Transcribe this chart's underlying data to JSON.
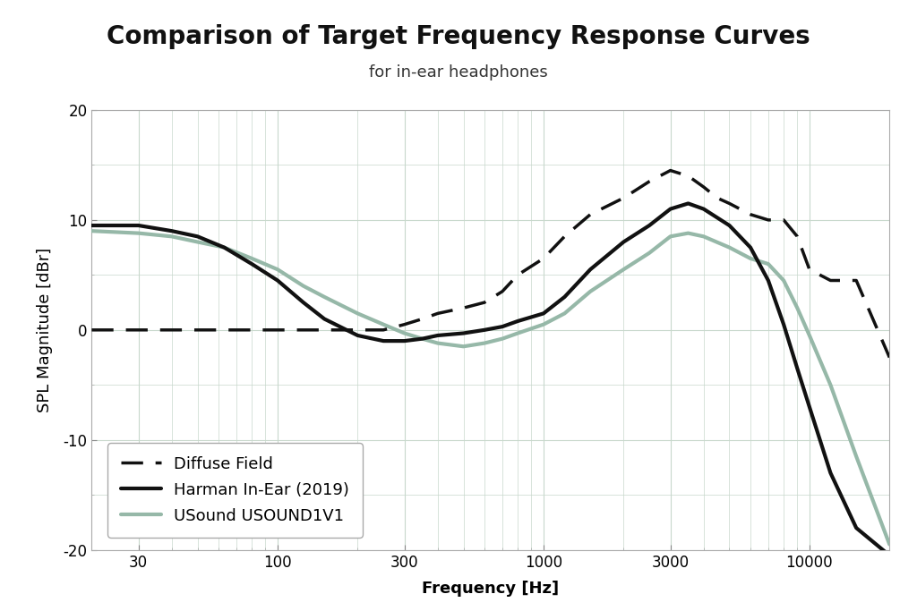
{
  "title": "Comparison of Target Frequency Response Curves",
  "subtitle": "for in-ear headphones",
  "xlabel": "Frequency [Hz]",
  "ylabel": "SPL Magnitude [dBr]",
  "xlim": [
    20,
    20000
  ],
  "ylim": [
    -20,
    20
  ],
  "background_color": "#ffffff",
  "grid_color": "#c8d8cc",
  "diffuse_field": {
    "color": "#111111",
    "linewidth": 2.5,
    "freqs": [
      20,
      30,
      50,
      80,
      100,
      150,
      200,
      250,
      300,
      350,
      400,
      500,
      600,
      700,
      800,
      1000,
      1200,
      1500,
      2000,
      2500,
      3000,
      3500,
      4000,
      4500,
      5000,
      6000,
      7000,
      8000,
      9000,
      10000,
      12000,
      15000,
      20000
    ],
    "values": [
      0.0,
      0.0,
      0.0,
      0.0,
      0.0,
      0.0,
      0.0,
      0.0,
      0.5,
      1.0,
      1.5,
      2.0,
      2.5,
      3.5,
      5.0,
      6.5,
      8.5,
      10.5,
      12.0,
      13.5,
      14.5,
      14.0,
      13.0,
      12.0,
      11.5,
      10.5,
      10.0,
      10.0,
      8.5,
      5.5,
      4.5,
      4.5,
      -2.5
    ]
  },
  "harman": {
    "color": "#111111",
    "linewidth": 3.0,
    "freqs": [
      20,
      30,
      40,
      50,
      63,
      80,
      100,
      125,
      150,
      200,
      250,
      300,
      350,
      400,
      500,
      600,
      700,
      800,
      1000,
      1200,
      1500,
      2000,
      2500,
      3000,
      3500,
      4000,
      5000,
      6000,
      7000,
      8000,
      9000,
      10000,
      12000,
      15000,
      20000
    ],
    "values": [
      9.5,
      9.5,
      9.0,
      8.5,
      7.5,
      6.0,
      4.5,
      2.5,
      1.0,
      -0.5,
      -1.0,
      -1.0,
      -0.8,
      -0.5,
      -0.3,
      0.0,
      0.3,
      0.8,
      1.5,
      3.0,
      5.5,
      8.0,
      9.5,
      11.0,
      11.5,
      11.0,
      9.5,
      7.5,
      4.5,
      0.5,
      -3.5,
      -7.0,
      -13.0,
      -18.0,
      -20.5
    ]
  },
  "usound": {
    "color": "#96b8a8",
    "linewidth": 3.0,
    "freqs": [
      20,
      30,
      40,
      50,
      63,
      80,
      100,
      125,
      150,
      200,
      250,
      300,
      350,
      400,
      500,
      600,
      700,
      800,
      1000,
      1200,
      1500,
      2000,
      2500,
      3000,
      3500,
      4000,
      5000,
      6000,
      7000,
      8000,
      9000,
      10000,
      12000,
      15000,
      20000
    ],
    "values": [
      9.0,
      8.8,
      8.5,
      8.0,
      7.5,
      6.5,
      5.5,
      4.0,
      3.0,
      1.5,
      0.5,
      -0.3,
      -0.8,
      -1.2,
      -1.5,
      -1.2,
      -0.8,
      -0.3,
      0.5,
      1.5,
      3.5,
      5.5,
      7.0,
      8.5,
      8.8,
      8.5,
      7.5,
      6.5,
      6.0,
      4.5,
      2.0,
      -0.5,
      -5.0,
      -11.5,
      -19.5
    ]
  },
  "legend_labels": [
    "Diffuse Field",
    "Harman In-Ear (2019)",
    "USound USOUND1V1"
  ],
  "title_fontsize": 20,
  "subtitle_fontsize": 13,
  "axis_label_fontsize": 13,
  "tick_fontsize": 12,
  "legend_fontsize": 13,
  "xticks": [
    30,
    100,
    300,
    1000,
    3000,
    10000
  ],
  "xtick_labels": [
    "30",
    "100",
    "300",
    "1000",
    "3000",
    "10000"
  ],
  "yticks": [
    -20,
    -10,
    0,
    10,
    20
  ],
  "ytick_labels": [
    "-20",
    "-10",
    "0",
    "10",
    "20"
  ]
}
